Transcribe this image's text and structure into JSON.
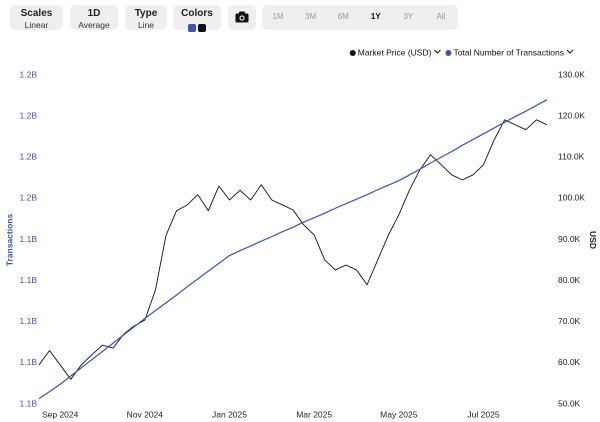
{
  "toolbar": {
    "controls": [
      {
        "label": "Scales",
        "value": "Linear"
      },
      {
        "label": "1D",
        "value": "Average"
      },
      {
        "label": "Type",
        "value": "Line"
      }
    ],
    "colors_label": "Colors",
    "ranges": [
      "1M",
      "3M",
      "6M",
      "1Y",
      "3Y",
      "All"
    ],
    "active_range": 3
  },
  "chart_data": {
    "type": "line",
    "categories": [
      null,
      null,
      "Sep 2024",
      null,
      null,
      null,
      null,
      null,
      null,
      null,
      "Nov 2024",
      null,
      null,
      null,
      null,
      null,
      null,
      null,
      "Jan 2025",
      null,
      null,
      null,
      null,
      null,
      null,
      null,
      "Mar 2025",
      null,
      null,
      null,
      null,
      null,
      null,
      null,
      "May 2025",
      null,
      null,
      null,
      null,
      null,
      null,
      null,
      "Jul 2025",
      null,
      null,
      null,
      null,
      null,
      null
    ],
    "series": [
      {
        "name": "Market Price (USD)",
        "color": "#111111",
        "axis": "y2",
        "values": [
          59500,
          63000,
          59500,
          56000,
          59500,
          62000,
          64300,
          63600,
          67000,
          69000,
          70400,
          77700,
          91000,
          97000,
          98400,
          100900,
          97000,
          103000,
          99600,
          102000,
          99600,
          103300,
          99600,
          98400,
          97200,
          93600,
          91100,
          85000,
          82600,
          83800,
          82600,
          79000,
          85000,
          91000,
          96000,
          102000,
          107000,
          110600,
          108200,
          105700,
          104500,
          105700,
          108200,
          114200,
          119100,
          117900,
          116700,
          119100,
          117900
        ]
      },
      {
        "name": "Total Number of Transactions",
        "color": "#3a56b0",
        "values": [
          1101300000,
          1103000000,
          1104800000,
          1106800000,
          1108800000,
          1110800000,
          1112800000,
          1114800000,
          1116800000,
          1118800000,
          1120800000,
          1122700000,
          1124600000,
          1126500000,
          1128500000,
          1130400000,
          1132300000,
          1134200000,
          1136100000,
          1137300000,
          1138400000,
          1139600000,
          1140700000,
          1141900000,
          1143000000,
          1144200000,
          1145300000,
          1146400000,
          1147600000,
          1148700000,
          1149800000,
          1150900000,
          1152100000,
          1153200000,
          1154300000,
          1155700000,
          1157100000,
          1158600000,
          1160000000,
          1161400000,
          1162900000,
          1164300000,
          1165700000,
          1167100000,
          1168500000,
          1169900000,
          1171200000,
          1172600000,
          1174000000
        ]
      }
    ],
    "y_label": "Transactions",
    "y2_label": "USD",
    "ylim": [
      1100000000,
      1180000000
    ],
    "yticks": [
      {
        "value": 1100000000,
        "label": "1.1B"
      },
      {
        "value": 1110000000,
        "label": "1.1B"
      },
      {
        "value": 1120000000,
        "label": "1.1B"
      },
      {
        "value": 1130000000,
        "label": "1.1B"
      },
      {
        "value": 1140000000,
        "label": "1.1B"
      },
      {
        "value": 1150000000,
        "label": "1.2B"
      },
      {
        "value": 1160000000,
        "label": "1.2B"
      },
      {
        "value": 1170000000,
        "label": "1.2B"
      },
      {
        "value": 1180000000,
        "label": "1.2B"
      }
    ],
    "y2lim": [
      50000,
      130000
    ],
    "y2ticks": [
      {
        "value": 50000,
        "label": "50.0K"
      },
      {
        "value": 60000,
        "label": "60.0K"
      },
      {
        "value": 70000,
        "label": "70.0K"
      },
      {
        "value": 80000,
        "label": "80.0K"
      },
      {
        "value": 90000,
        "label": "90.0K"
      },
      {
        "value": 100000,
        "label": "100.0K"
      },
      {
        "value": 110000,
        "label": "110.0K"
      },
      {
        "value": 120000,
        "label": "120.0K"
      },
      {
        "value": 130000,
        "label": "130.0K"
      }
    ],
    "legend": "top-right",
    "grid": false
  }
}
